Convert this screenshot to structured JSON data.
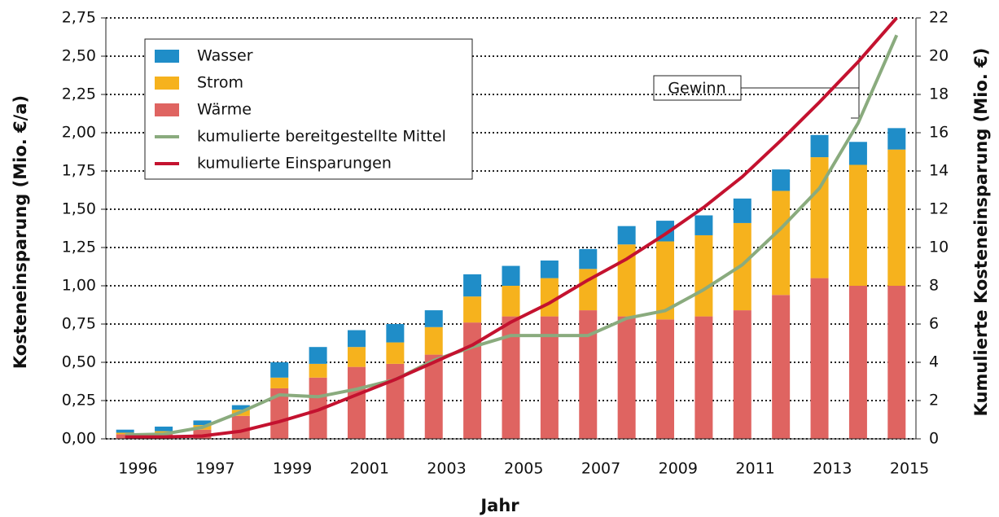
{
  "chart_data": {
    "type": "bar",
    "x_label": "Jahr",
    "y_label": "Kosteneinsparung (Mio. €/a)",
    "y2_label": "Kumulierte Kosteneinsparung (Mio. €)",
    "annotation": "Gewinn",
    "categories": [
      "1996",
      null,
      "1997",
      null,
      "1999",
      null,
      "2001",
      null,
      "2003",
      null,
      "2005",
      null,
      "2007",
      null,
      "2009",
      null,
      "2011",
      null,
      "2013",
      null,
      "2015"
    ],
    "series": [
      {
        "name": "Wärme",
        "type": "bar",
        "color": "#df6461",
        "values": [
          0.03,
          0.03,
          0.06,
          0.15,
          0.33,
          0.4,
          0.47,
          0.49,
          0.55,
          0.76,
          0.8,
          0.8,
          0.84,
          0.8,
          0.78,
          0.8,
          0.84,
          0.94,
          1.05,
          1.0,
          1.0
        ]
      },
      {
        "name": "Strom",
        "type": "bar",
        "color": "#f6b21d",
        "values": [
          0.01,
          0.02,
          0.03,
          0.04,
          0.07,
          0.09,
          0.13,
          0.14,
          0.18,
          0.17,
          0.2,
          0.25,
          0.27,
          0.47,
          0.51,
          0.53,
          0.57,
          0.68,
          0.79,
          0.79,
          0.89
        ]
      },
      {
        "name": "Wasser",
        "type": "bar",
        "color": "#1f8dc8",
        "values": [
          0.02,
          0.03,
          0.03,
          0.03,
          0.1,
          0.11,
          0.11,
          0.12,
          0.11,
          0.145,
          0.13,
          0.115,
          0.13,
          0.12,
          0.135,
          0.13,
          0.16,
          0.14,
          0.145,
          0.15,
          0.14
        ]
      },
      {
        "name": "kumulierte bereitgestellte Mittel",
        "type": "line",
        "axis": "y2",
        "color": "#8aab7e",
        "values": [
          0.2,
          0.25,
          0.6,
          1.4,
          2.3,
          2.2,
          2.6,
          3.1,
          4.1,
          4.8,
          5.4,
          5.4,
          5.4,
          6.3,
          6.7,
          7.8,
          9.1,
          11.0,
          13.1,
          16.5,
          21.1
        ]
      },
      {
        "name": "kumulierte Einsparungen",
        "type": "line",
        "axis": "y2",
        "color": "#c4122f",
        "values": [
          0.1,
          0.1,
          0.15,
          0.4,
          0.9,
          1.5,
          2.3,
          3.1,
          4.0,
          4.9,
          6.1,
          7.1,
          8.3,
          9.4,
          10.7,
          12.1,
          13.7,
          15.6,
          17.6,
          19.7,
          22.0
        ]
      }
    ],
    "ylim": [
      0,
      2.75
    ],
    "yticks": [
      {
        "value": 0,
        "label": "0,00"
      },
      {
        "value": 0.25,
        "label": "0,25"
      },
      {
        "value": 0.5,
        "label": "0,50"
      },
      {
        "value": 0.75,
        "label": "0,75"
      },
      {
        "value": 1,
        "label": "1,00"
      },
      {
        "value": 1.25,
        "label": "1,25"
      },
      {
        "value": 1.5,
        "label": "1,50"
      },
      {
        "value": 1.75,
        "label": "1,75"
      },
      {
        "value": 2,
        "label": "2,00"
      },
      {
        "value": 2.25,
        "label": "2,25"
      },
      {
        "value": 2.5,
        "label": "2,50"
      },
      {
        "value": 2.75,
        "label": "2,75"
      }
    ],
    "y2lim": [
      0,
      22
    ],
    "y2ticks": [
      0,
      2,
      4,
      6,
      8,
      10,
      12,
      14,
      16,
      18,
      20,
      22
    ],
    "grid": true,
    "legend": "upper left"
  }
}
